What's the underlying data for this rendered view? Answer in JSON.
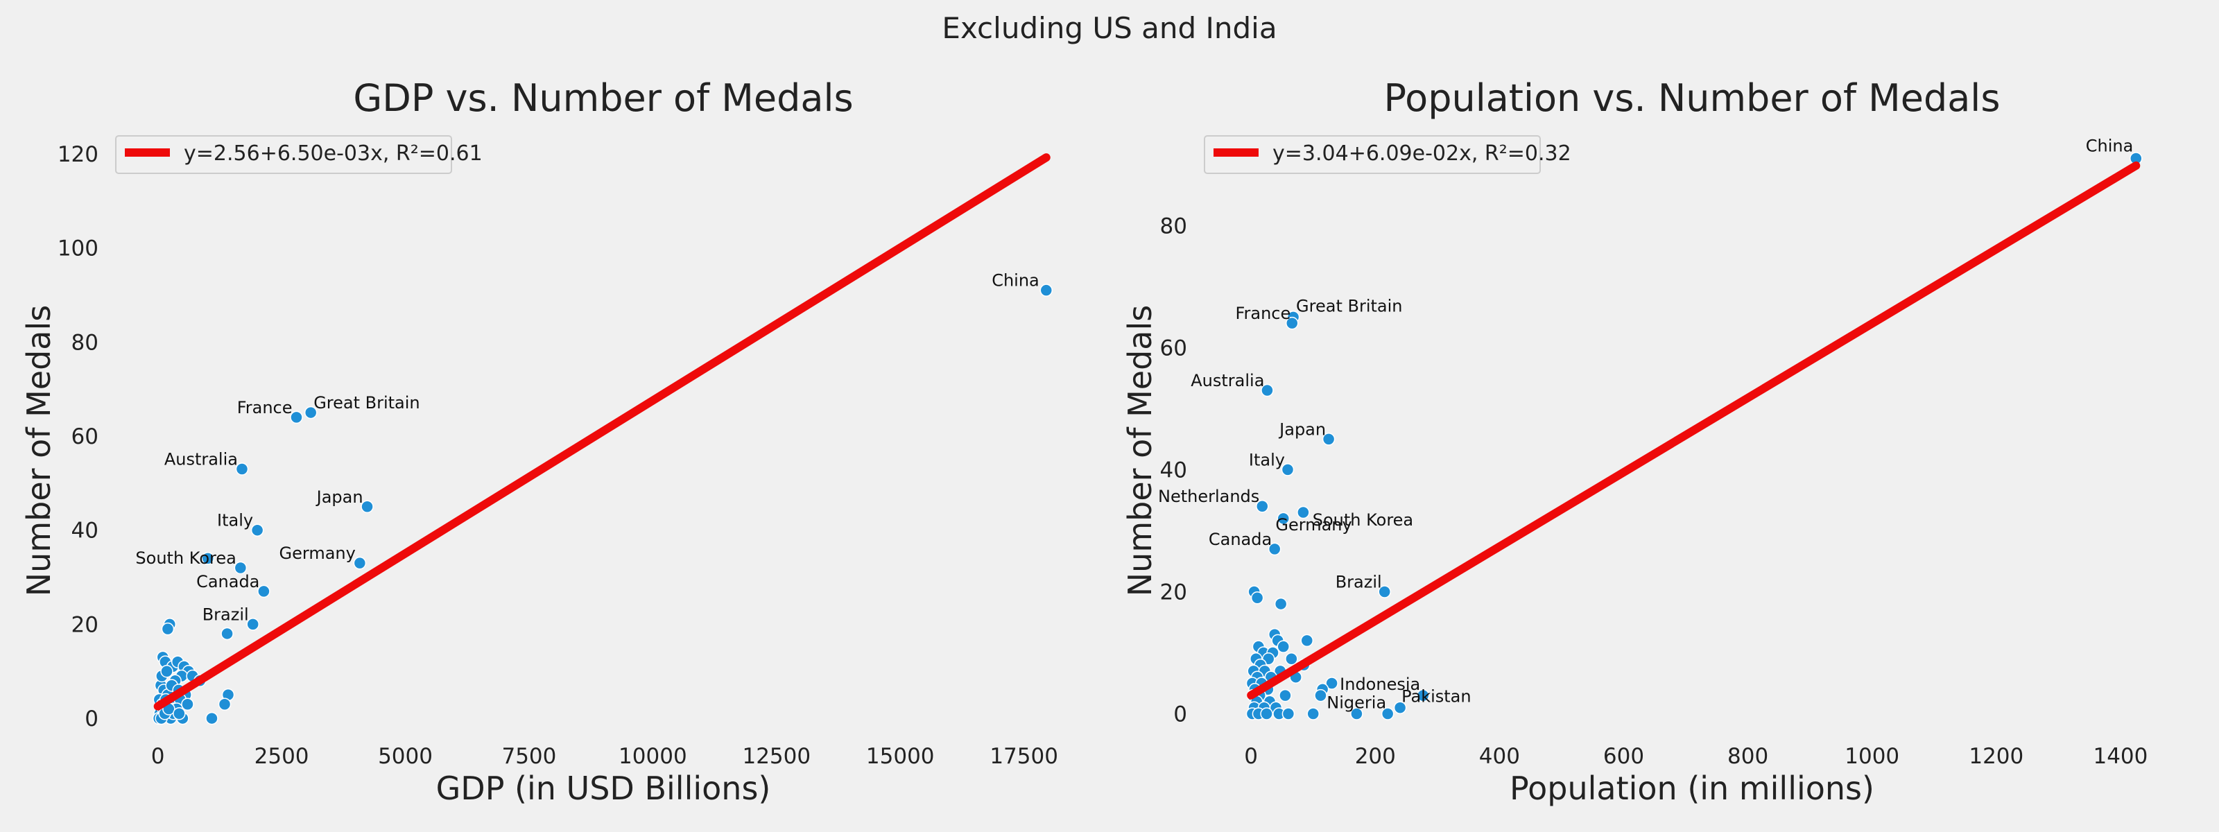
{
  "suptitle": "Excluding US and India",
  "chart_data": [
    {
      "type": "scatter",
      "title": "GDP vs. Number of Medals",
      "xlabel": "GDP (in USD Billions)",
      "ylabel": "Number of Medals",
      "xlim": [
        -850,
        18850
      ],
      "ylim": [
        -5,
        125
      ],
      "xticks": [
        0,
        2500,
        5000,
        7500,
        10000,
        12500,
        15000,
        17500
      ],
      "xtick_labels": [
        "0",
        "2500",
        "5000",
        "7500",
        "10000",
        "12500",
        "15000",
        "17500"
      ],
      "yticks": [
        0,
        20,
        40,
        60,
        80,
        100,
        120
      ],
      "ytick_labels": [
        "0",
        "20",
        "40",
        "60",
        "80",
        "100",
        "120"
      ],
      "grid": false,
      "legend_position": "top-left",
      "colors": {
        "points": "#1f8fd6",
        "fit_line": "#ee0a0a"
      },
      "fit": {
        "intercept": 2.56,
        "slope": 0.0065,
        "x_range": [
          0,
          17950
        ],
        "label": "y=2.56+6.50e-03x, R²=0.61"
      },
      "points": [
        {
          "x": 17950,
          "y": 91,
          "label": "China"
        },
        {
          "x": 3090,
          "y": 65,
          "label": "Great Britain"
        },
        {
          "x": 2800,
          "y": 64,
          "label": "France"
        },
        {
          "x": 1700,
          "y": 53,
          "label": "Australia"
        },
        {
          "x": 4230,
          "y": 45,
          "label": "Japan"
        },
        {
          "x": 2010,
          "y": 40,
          "label": "Italy"
        },
        {
          "x": 1670,
          "y": 32,
          "label": "South Korea"
        },
        {
          "x": 4080,
          "y": 33,
          "label": "Germany"
        },
        {
          "x": 2140,
          "y": 27,
          "label": "Canada"
        },
        {
          "x": 1920,
          "y": 20,
          "label": "Brazil"
        },
        {
          "x": 1010,
          "y": 34
        },
        {
          "x": 1400,
          "y": 18
        },
        {
          "x": 240,
          "y": 20
        },
        {
          "x": 200,
          "y": 19
        },
        {
          "x": 100,
          "y": 13
        },
        {
          "x": 150,
          "y": 12
        },
        {
          "x": 300,
          "y": 11
        },
        {
          "x": 400,
          "y": 12
        },
        {
          "x": 530,
          "y": 11
        },
        {
          "x": 620,
          "y": 10
        },
        {
          "x": 480,
          "y": 9
        },
        {
          "x": 350,
          "y": 8
        },
        {
          "x": 700,
          "y": 9
        },
        {
          "x": 850,
          "y": 8
        },
        {
          "x": 60,
          "y": 7
        },
        {
          "x": 120,
          "y": 6
        },
        {
          "x": 200,
          "y": 5
        },
        {
          "x": 280,
          "y": 7
        },
        {
          "x": 420,
          "y": 6
        },
        {
          "x": 560,
          "y": 5
        },
        {
          "x": 30,
          "y": 4
        },
        {
          "x": 90,
          "y": 3
        },
        {
          "x": 160,
          "y": 4
        },
        {
          "x": 250,
          "y": 3
        },
        {
          "x": 330,
          "y": 2
        },
        {
          "x": 450,
          "y": 4
        },
        {
          "x": 600,
          "y": 3
        },
        {
          "x": 1420,
          "y": 5
        },
        {
          "x": 1350,
          "y": 3
        },
        {
          "x": 40,
          "y": 1
        },
        {
          "x": 110,
          "y": 2
        },
        {
          "x": 190,
          "y": 1
        },
        {
          "x": 260,
          "y": 0
        },
        {
          "x": 310,
          "y": 1
        },
        {
          "x": 380,
          "y": 2
        },
        {
          "x": 500,
          "y": 0
        },
        {
          "x": 20,
          "y": 0
        },
        {
          "x": 70,
          "y": 0
        },
        {
          "x": 140,
          "y": 1
        },
        {
          "x": 220,
          "y": 2
        },
        {
          "x": 1090,
          "y": 0
        },
        {
          "x": 430,
          "y": 1
        },
        {
          "x": 80,
          "y": 9
        },
        {
          "x": 180,
          "y": 10
        }
      ]
    },
    {
      "type": "scatter",
      "title": "Population vs. Number of Medals",
      "xlabel": "Population (in millions)",
      "ylabel": "Number of Medals",
      "xlim": [
        -75,
        1495
      ],
      "ylim": [
        -4.6,
        95.6
      ],
      "xticks": [
        0,
        200,
        400,
        600,
        800,
        1000,
        1200,
        1400
      ],
      "xtick_labels": [
        "0",
        "200",
        "400",
        "600",
        "800",
        "1000",
        "1200",
        "1400"
      ],
      "yticks": [
        0,
        20,
        40,
        60,
        80
      ],
      "ytick_labels": [
        "0",
        "20",
        "40",
        "60",
        "80"
      ],
      "grid": false,
      "legend_position": "top-left",
      "colors": {
        "points": "#1f8fd6",
        "fit_line": "#ee0a0a"
      },
      "fit": {
        "intercept": 3.04,
        "slope": 0.0609,
        "x_range": [
          0,
          1425
        ],
        "label": "y=3.04+6.09e-02x, R²=0.32"
      },
      "points": [
        {
          "x": 1425,
          "y": 91,
          "label": "China"
        },
        {
          "x": 68,
          "y": 65,
          "label": "Great Britain"
        },
        {
          "x": 66,
          "y": 64,
          "label": "France"
        },
        {
          "x": 26,
          "y": 53,
          "label": "Australia"
        },
        {
          "x": 125,
          "y": 45,
          "label": "Japan"
        },
        {
          "x": 59,
          "y": 40,
          "label": "Italy"
        },
        {
          "x": 18,
          "y": 34,
          "label": "Netherlands"
        },
        {
          "x": 84,
          "y": 33,
          "label": "Germany"
        },
        {
          "x": 38,
          "y": 27,
          "label": "Canada"
        },
        {
          "x": 215,
          "y": 20,
          "label": "Brazil"
        },
        {
          "x": 52,
          "y": 32,
          "label": "South Korea"
        },
        {
          "x": 277,
          "y": 3,
          "label": "Indonesia"
        },
        {
          "x": 240,
          "y": 1,
          "label": "Pakistan"
        },
        {
          "x": 220,
          "y": 0,
          "label": "Nigeria"
        },
        {
          "x": 5,
          "y": 20
        },
        {
          "x": 10,
          "y": 19
        },
        {
          "x": 48,
          "y": 18
        },
        {
          "x": 38,
          "y": 13
        },
        {
          "x": 43,
          "y": 12
        },
        {
          "x": 90,
          "y": 12
        },
        {
          "x": 12,
          "y": 11
        },
        {
          "x": 52,
          "y": 11
        },
        {
          "x": 20,
          "y": 10
        },
        {
          "x": 35,
          "y": 10
        },
        {
          "x": 8,
          "y": 9
        },
        {
          "x": 28,
          "y": 9
        },
        {
          "x": 65,
          "y": 9
        },
        {
          "x": 15,
          "y": 8
        },
        {
          "x": 85,
          "y": 8
        },
        {
          "x": 4,
          "y": 7
        },
        {
          "x": 22,
          "y": 7
        },
        {
          "x": 47,
          "y": 7
        },
        {
          "x": 10,
          "y": 6
        },
        {
          "x": 32,
          "y": 6
        },
        {
          "x": 72,
          "y": 6
        },
        {
          "x": 2,
          "y": 5
        },
        {
          "x": 17,
          "y": 5
        },
        {
          "x": 130,
          "y": 5
        },
        {
          "x": 6,
          "y": 4
        },
        {
          "x": 27,
          "y": 4
        },
        {
          "x": 115,
          "y": 4
        },
        {
          "x": 3,
          "y": 3
        },
        {
          "x": 14,
          "y": 3
        },
        {
          "x": 55,
          "y": 3
        },
        {
          "x": 112,
          "y": 3
        },
        {
          "x": 9,
          "y": 2
        },
        {
          "x": 30,
          "y": 2
        },
        {
          "x": 5,
          "y": 1
        },
        {
          "x": 21,
          "y": 1
        },
        {
          "x": 40,
          "y": 1
        },
        {
          "x": 2,
          "y": 0
        },
        {
          "x": 12,
          "y": 0
        },
        {
          "x": 25,
          "y": 0
        },
        {
          "x": 45,
          "y": 0
        },
        {
          "x": 60,
          "y": 0
        },
        {
          "x": 100,
          "y": 0
        },
        {
          "x": 170,
          "y": 0
        }
      ]
    }
  ]
}
